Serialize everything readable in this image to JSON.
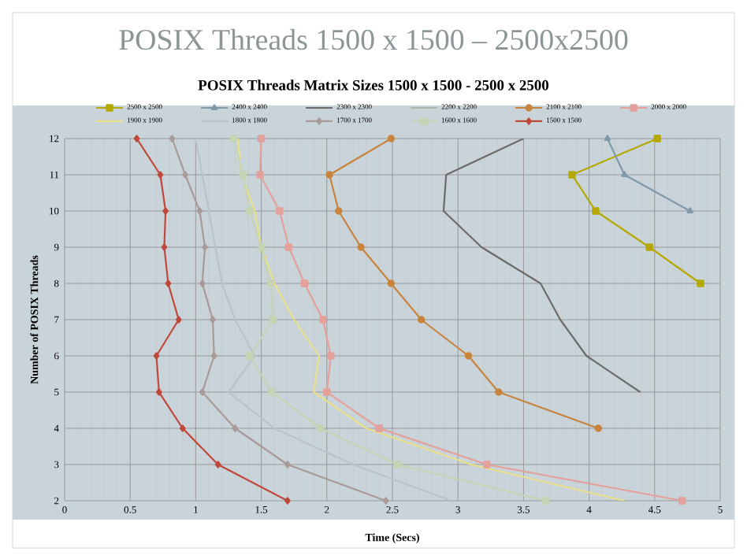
{
  "chart_data": {
    "type": "line",
    "title": "POSIX Threads 1500 x 1500 – 2500x2500",
    "subtitle": "POSIX Threads Matrix Sizes 1500 x 1500 - 2500 x 2500",
    "xlabel": "Time (Secs)",
    "ylabel": "Number of POSIX Threads",
    "xlim": [
      0,
      5
    ],
    "ylim": [
      2,
      12
    ],
    "xticks": [
      0,
      0.5,
      1,
      1.5,
      2,
      2.5,
      3,
      3.5,
      4,
      4.5,
      5
    ],
    "yticks": [
      2,
      3,
      4,
      5,
      6,
      7,
      8,
      9,
      10,
      11,
      12
    ],
    "grid": true,
    "legend": "top",
    "series": [
      {
        "name": "2500 x 2500",
        "color": "#b5a800",
        "marker": "square",
        "x": [
          4.52,
          3.87,
          4.05,
          4.46,
          4.85
        ],
        "values": [
          12,
          11,
          10,
          9,
          8
        ]
      },
      {
        "name": "2400 x 2400",
        "color": "#7f99a8",
        "marker": "triangle",
        "x": [
          4.14,
          4.27,
          4.77
        ],
        "values": [
          12,
          11,
          10
        ]
      },
      {
        "name": "2300 x 2300",
        "color": "#6b6b6b",
        "marker": "none",
        "x": [
          3.5,
          2.91,
          2.89,
          3.18,
          3.63,
          3.78,
          3.98,
          4.39
        ],
        "values": [
          12,
          11,
          10,
          9,
          8,
          7,
          6,
          5
        ]
      },
      {
        "name": "2200 x 2200",
        "color": "#a8b8b0",
        "marker": "none"
      },
      {
        "name": "2100 x 2100",
        "color": "#c8843c",
        "marker": "circle",
        "x": [
          2.49,
          2.02,
          2.09,
          2.26,
          2.49,
          2.72,
          3.08,
          3.31,
          4.07
        ],
        "values": [
          12,
          11,
          10,
          9,
          8,
          7,
          6,
          5,
          4
        ]
      },
      {
        "name": "2000 x 2000",
        "color": "#e4a09a",
        "marker": "square",
        "x": [
          1.5,
          1.49,
          1.64,
          1.71,
          1.83,
          1.97,
          2.03,
          2.0,
          2.4,
          3.22,
          4.71
        ],
        "values": [
          12,
          11,
          10,
          9,
          8,
          7,
          6,
          5,
          4,
          3,
          2
        ]
      },
      {
        "name": "1900 x 1900",
        "color": "#e8e08a",
        "marker": "none",
        "x": [
          1.32,
          1.35,
          1.45,
          1.5,
          1.6,
          1.75,
          1.94,
          1.9,
          2.3,
          3.1,
          4.27
        ],
        "values": [
          12,
          11,
          10,
          9,
          8,
          7,
          6,
          5,
          4,
          3,
          2
        ]
      },
      {
        "name": "1800 x 1800",
        "color": "#b8c4c8",
        "marker": "none",
        "x": [
          1.0,
          1.05,
          1.1,
          1.15,
          1.2,
          1.3,
          1.45,
          1.25,
          1.6,
          2.2,
          2.95
        ],
        "values": [
          12,
          11,
          10,
          9,
          8,
          7,
          6,
          5,
          4,
          3,
          2
        ]
      },
      {
        "name": "1700 x 1700",
        "color": "#a89a98",
        "marker": "diamond",
        "x": [
          0.82,
          0.92,
          1.03,
          1.07,
          1.05,
          1.13,
          1.14,
          1.05,
          1.3,
          1.7,
          2.45
        ],
        "values": [
          12,
          11,
          10,
          9,
          8,
          7,
          6,
          5,
          4,
          3,
          2
        ]
      },
      {
        "name": "1600 x 1600",
        "color": "#c4d4b4",
        "marker": "square",
        "x": [
          1.29,
          1.36,
          1.41,
          1.5,
          1.57,
          1.59,
          1.41,
          1.58,
          1.95,
          2.54,
          3.67
        ],
        "values": [
          12,
          11,
          10,
          9,
          8,
          7,
          6,
          5,
          4,
          3,
          2
        ]
      },
      {
        "name": "1500 x 1500",
        "color": "#c0483a",
        "marker": "diamond",
        "x": [
          0.55,
          0.73,
          0.77,
          0.76,
          0.79,
          0.87,
          0.7,
          0.72,
          0.9,
          1.17,
          1.7
        ],
        "values": [
          12,
          11,
          10,
          9,
          8,
          7,
          6,
          5,
          4,
          3,
          2
        ]
      }
    ]
  }
}
